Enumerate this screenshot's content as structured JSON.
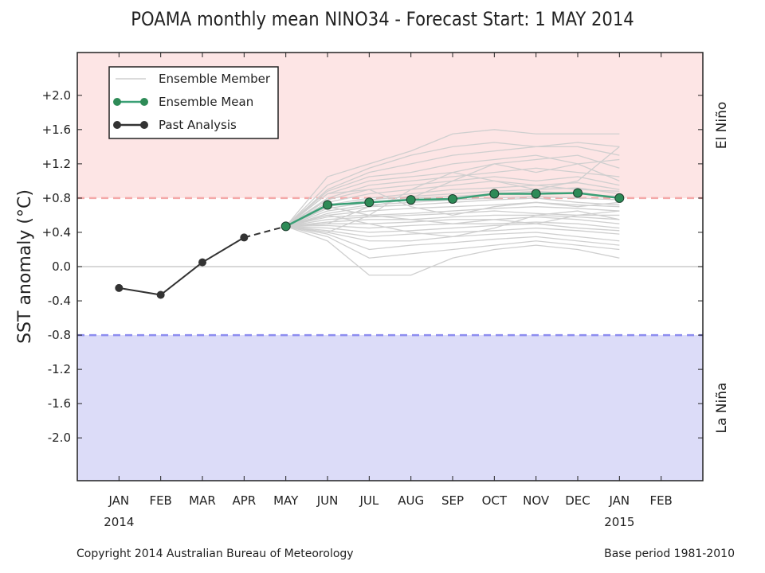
{
  "chart_data": {
    "type": "line",
    "title": "POAMA monthly mean NINO34 - Forecast Start: 1 MAY 2014",
    "ylabel": "SST anomaly (°C)",
    "xlabel": "",
    "x_ticks": [
      "JAN",
      "FEB",
      "MAR",
      "APR",
      "MAY",
      "JUN",
      "JUL",
      "AUG",
      "SEP",
      "OCT",
      "NOV",
      "DEC",
      "JAN",
      "FEB"
    ],
    "x_year_labels": [
      {
        "index": 0,
        "label": "2014"
      },
      {
        "index": 12,
        "label": "2015"
      }
    ],
    "y_ticks": [
      "+2.0",
      "+1.6",
      "+1.2",
      "+0.8",
      "+0.4",
      "0.0",
      "-0.4",
      "-0.8",
      "-1.2",
      "-1.6",
      "-2.0"
    ],
    "y_tick_values": [
      2.0,
      1.6,
      1.2,
      0.8,
      0.4,
      0.0,
      -0.4,
      -0.8,
      -1.2,
      -1.6,
      -2.0
    ],
    "ylim": [
      -2.5,
      2.5
    ],
    "xlim": [
      -1,
      14
    ],
    "thresholds": {
      "el_nino": 0.8,
      "la_nina": -0.8
    },
    "regions": {
      "el_nino_label": "El Niño",
      "la_nina_label": "La Niña"
    },
    "colors": {
      "el_nino_fill": "#fde5e5",
      "la_nina_fill": "#dcdcf8",
      "el_nino_line": "#f4a8a8",
      "la_nina_line": "#8c8cf0",
      "zero_line": "#cccccc",
      "ensemble_member": "#cfcfcf",
      "ensemble_mean": "#3aa076",
      "ensemble_mean_marker": "#2e8b57",
      "past_analysis": "#333333"
    },
    "legend": {
      "placement": "top-left",
      "entries": [
        "Ensemble Member",
        "Ensemble Mean",
        "Past Analysis"
      ]
    },
    "series": [
      {
        "name": "Past Analysis",
        "x": [
          0,
          1,
          2,
          3
        ],
        "values": [
          -0.25,
          -0.33,
          0.05,
          0.34
        ]
      },
      {
        "name": "Ensemble Mean",
        "x": [
          4,
          5,
          6,
          7,
          8,
          9,
          10,
          11,
          12
        ],
        "values": [
          0.47,
          0.72,
          0.75,
          0.78,
          0.79,
          0.85,
          0.85,
          0.86,
          0.8
        ]
      }
    ],
    "link_segment": {
      "x": [
        3,
        4
      ],
      "values": [
        0.34,
        0.47
      ]
    },
    "ensemble_members": {
      "x": [
        4,
        5,
        6,
        7,
        8,
        9,
        10,
        11,
        12
      ],
      "members": [
        [
          0.47,
          1.05,
          1.2,
          1.35,
          1.55,
          1.6,
          1.55,
          1.55,
          1.55
        ],
        [
          0.47,
          0.95,
          1.15,
          1.3,
          1.4,
          1.45,
          1.4,
          1.45,
          1.4
        ],
        [
          0.47,
          0.9,
          1.1,
          1.2,
          1.3,
          1.35,
          1.4,
          1.4,
          1.3
        ],
        [
          0.47,
          0.88,
          1.05,
          1.1,
          1.2,
          1.25,
          1.3,
          1.2,
          1.25
        ],
        [
          0.47,
          0.85,
          1.0,
          1.05,
          1.1,
          1.2,
          1.25,
          1.3,
          1.15
        ],
        [
          0.47,
          0.8,
          0.95,
          1.0,
          1.05,
          1.1,
          1.15,
          1.1,
          1.05
        ],
        [
          0.47,
          0.78,
          0.9,
          0.95,
          1.0,
          1.05,
          1.0,
          1.05,
          0.95
        ],
        [
          0.47,
          0.75,
          0.85,
          0.9,
          0.95,
          1.0,
          0.95,
          0.98,
          0.9
        ],
        [
          0.47,
          0.72,
          0.8,
          0.85,
          0.9,
          0.92,
          0.95,
          0.9,
          0.88
        ],
        [
          0.47,
          0.7,
          0.78,
          0.82,
          0.85,
          0.88,
          0.9,
          0.92,
          0.85
        ],
        [
          0.47,
          0.68,
          0.75,
          0.8,
          0.82,
          0.85,
          0.88,
          0.85,
          0.82
        ],
        [
          0.47,
          0.65,
          0.72,
          0.75,
          0.78,
          0.8,
          0.82,
          0.8,
          0.78
        ],
        [
          0.47,
          0.62,
          0.7,
          0.72,
          0.75,
          0.78,
          0.8,
          0.75,
          0.72
        ],
        [
          0.47,
          0.6,
          0.65,
          0.68,
          0.7,
          0.72,
          0.75,
          0.72,
          0.7
        ],
        [
          0.47,
          0.58,
          0.6,
          0.62,
          0.65,
          0.68,
          0.7,
          0.68,
          0.65
        ],
        [
          0.47,
          0.55,
          0.58,
          0.6,
          0.62,
          0.65,
          0.62,
          0.6,
          0.6
        ],
        [
          0.47,
          0.52,
          0.55,
          0.55,
          0.58,
          0.6,
          0.6,
          0.58,
          0.55
        ],
        [
          0.47,
          0.5,
          0.5,
          0.52,
          0.55,
          0.55,
          0.58,
          0.55,
          0.5
        ],
        [
          0.47,
          0.48,
          0.45,
          0.48,
          0.5,
          0.5,
          0.52,
          0.5,
          0.45
        ],
        [
          0.47,
          0.45,
          0.4,
          0.42,
          0.45,
          0.48,
          0.5,
          0.45,
          0.42
        ],
        [
          0.47,
          0.42,
          0.35,
          0.38,
          0.4,
          0.42,
          0.45,
          0.42,
          0.38
        ],
        [
          0.47,
          0.4,
          0.3,
          0.3,
          0.35,
          0.38,
          0.4,
          0.35,
          0.3
        ],
        [
          0.47,
          0.38,
          0.2,
          0.25,
          0.28,
          0.32,
          0.35,
          0.3,
          0.25
        ],
        [
          0.47,
          0.35,
          0.1,
          0.15,
          0.2,
          0.25,
          0.3,
          0.25,
          0.2
        ],
        [
          0.47,
          0.3,
          -0.1,
          -0.1,
          0.1,
          0.2,
          0.25,
          0.2,
          0.1
        ],
        [
          0.47,
          0.4,
          0.6,
          0.9,
          1.1,
          1.0,
          0.9,
          1.0,
          1.4
        ],
        [
          0.47,
          0.5,
          0.7,
          0.8,
          1.0,
          1.2,
          1.1,
          1.2,
          1.0
        ],
        [
          0.47,
          0.6,
          0.5,
          0.4,
          0.35,
          0.45,
          0.6,
          0.65,
          0.55
        ],
        [
          0.47,
          0.7,
          0.6,
          0.55,
          0.5,
          0.55,
          0.5,
          0.6,
          0.65
        ],
        [
          0.47,
          0.85,
          0.9,
          0.7,
          0.6,
          0.7,
          0.75,
          0.7,
          0.75
        ]
      ]
    }
  },
  "footer": {
    "copyright": "Copyright 2014 Australian Bureau of Meteorology",
    "base_period": "Base period 1981-2010"
  }
}
